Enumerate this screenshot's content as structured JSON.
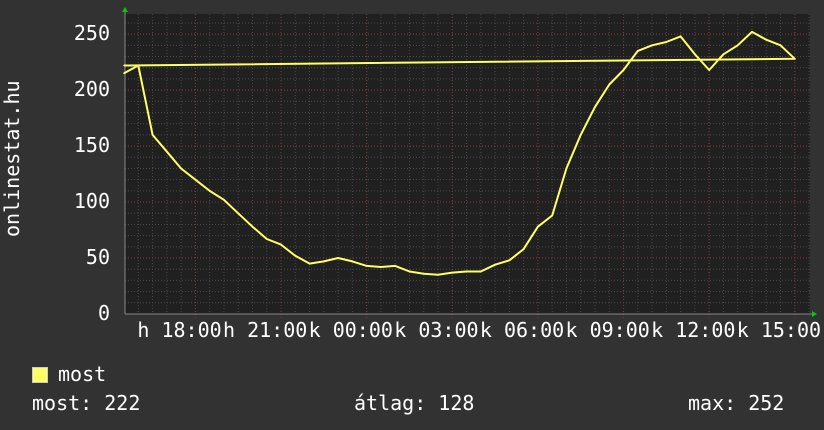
{
  "chart_data": {
    "type": "line",
    "ylabel": "onlinestat.hu",
    "xlabel": "",
    "ylim": [
      0,
      268
    ],
    "yticks": [
      0,
      50,
      100,
      150,
      200,
      250
    ],
    "xtick_labels": [
      "h 18:00",
      "h 21:00",
      "k 00:00",
      "k 03:00",
      "k 06:00",
      "k 09:00",
      "k 12:00",
      "k 15:00"
    ],
    "xtick_times": [
      "18:00",
      "21:00",
      "00:00",
      "03:00",
      "06:00",
      "09:00",
      "12:00",
      "15:00"
    ],
    "grid": true,
    "legend_position": "bottom-left",
    "series": [
      {
        "name": "most",
        "color": "#ffff66",
        "x": [
          "15:30",
          "16:00",
          "16:30",
          "17:00",
          "17:30",
          "18:00",
          "18:30",
          "19:00",
          "19:30",
          "20:00",
          "20:30",
          "21:00",
          "21:30",
          "22:00",
          "22:30",
          "23:00",
          "23:30",
          "00:00",
          "00:30",
          "01:00",
          "01:30",
          "02:00",
          "02:30",
          "03:00",
          "03:30",
          "04:00",
          "04:30",
          "05:00",
          "05:30",
          "06:00",
          "06:30",
          "07:00",
          "07:30",
          "08:00",
          "08:30",
          "09:00",
          "09:30",
          "10:00",
          "10:30",
          "11:00",
          "11:30",
          "12:00",
          "12:30",
          "13:00",
          "13:30",
          "14:00",
          "14:30",
          "15:00",
          "15:30"
        ],
        "values": [
          215,
          222,
          160,
          145,
          130,
          120,
          110,
          102,
          90,
          78,
          67,
          62,
          52,
          45,
          47,
          50,
          47,
          43,
          42,
          43,
          38,
          36,
          35,
          37,
          38,
          38,
          44,
          48,
          58,
          78,
          88,
          130,
          160,
          185,
          205,
          218,
          235,
          240,
          243,
          248,
          232,
          218,
          232,
          240,
          252,
          245,
          240,
          228,
          222
        ]
      }
    ]
  },
  "legend": {
    "label": "most",
    "color": "#ffff66"
  },
  "stats": {
    "current": "most: 222",
    "average": "átlag: 128",
    "maximum": "max: 252"
  }
}
